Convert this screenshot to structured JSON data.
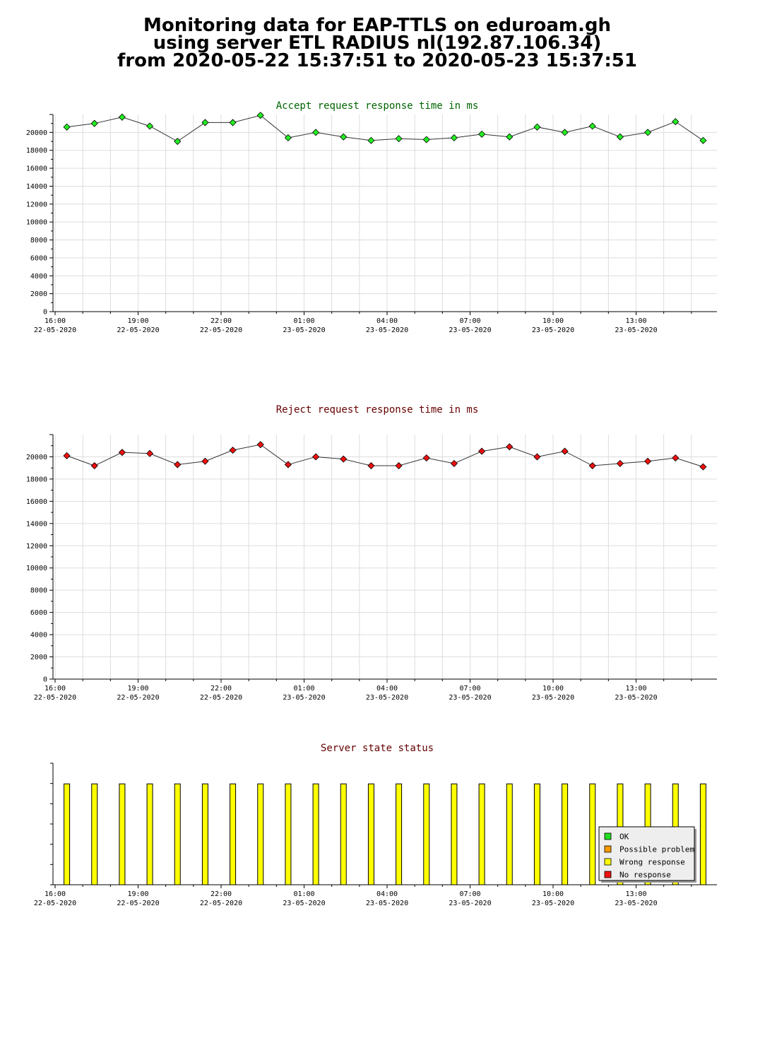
{
  "page": {
    "title_lines": [
      "Monitoring data for EAP-TTLS on eduroam.gh",
      "using server ETL RADIUS nl(192.87.106.34)",
      "from 2020-05-22 15:37:51 to 2020-05-23 15:37:51"
    ]
  },
  "chart_data": [
    {
      "type": "line",
      "title": "Accept request response time in ms",
      "title_color": "#006400",
      "marker_color": "#22ee22",
      "ylim": [
        0,
        22000
      ],
      "yticks": [
        0,
        2000,
        4000,
        6000,
        8000,
        10000,
        12000,
        14000,
        16000,
        18000,
        20000
      ],
      "xticks": [
        {
          "time": "16:00",
          "date": "22-05-2020"
        },
        {
          "time": "19:00",
          "date": "22-05-2020"
        },
        {
          "time": "22:00",
          "date": "22-05-2020"
        },
        {
          "time": "01:00",
          "date": "23-05-2020"
        },
        {
          "time": "04:00",
          "date": "23-05-2020"
        },
        {
          "time": "07:00",
          "date": "23-05-2020"
        },
        {
          "time": "10:00",
          "date": "23-05-2020"
        },
        {
          "time": "13:00",
          "date": "23-05-2020"
        }
      ],
      "grid": true,
      "values": [
        20600,
        21000,
        21700,
        20700,
        19000,
        21100,
        21100,
        21900,
        19400,
        20000,
        19500,
        19100,
        19300,
        19200,
        19400,
        19800,
        19500,
        20600,
        20000,
        20700,
        19500,
        20000,
        21200,
        19100
      ]
    },
    {
      "type": "line",
      "title": "Reject request response time in ms",
      "title_color": "#660000",
      "marker_color": "#ee1111",
      "ylim": [
        0,
        22000
      ],
      "yticks": [
        0,
        2000,
        4000,
        6000,
        8000,
        10000,
        12000,
        14000,
        16000,
        18000,
        20000
      ],
      "xticks": [
        {
          "time": "16:00",
          "date": "22-05-2020"
        },
        {
          "time": "19:00",
          "date": "22-05-2020"
        },
        {
          "time": "22:00",
          "date": "22-05-2020"
        },
        {
          "time": "01:00",
          "date": "23-05-2020"
        },
        {
          "time": "04:00",
          "date": "23-05-2020"
        },
        {
          "time": "07:00",
          "date": "23-05-2020"
        },
        {
          "time": "10:00",
          "date": "23-05-2020"
        },
        {
          "time": "13:00",
          "date": "23-05-2020"
        }
      ],
      "grid": true,
      "values": [
        20100,
        19200,
        20400,
        20300,
        19300,
        19600,
        20600,
        21100,
        19300,
        20000,
        19800,
        19200,
        19200,
        19900,
        19400,
        20500,
        20900,
        20000,
        20500,
        19200,
        19400,
        19600,
        19900,
        19100
      ]
    },
    {
      "type": "bar",
      "title": "Server state status",
      "title_color": "#660000",
      "bar_color": "#ffff00",
      "bar_level": 0.83,
      "bar_count": 24,
      "xticks": [
        {
          "time": "16:00",
          "date": "22-05-2020"
        },
        {
          "time": "19:00",
          "date": "22-05-2020"
        },
        {
          "time": "22:00",
          "date": "22-05-2020"
        },
        {
          "time": "01:00",
          "date": "23-05-2020"
        },
        {
          "time": "04:00",
          "date": "23-05-2020"
        },
        {
          "time": "07:00",
          "date": "23-05-2020"
        },
        {
          "time": "10:00",
          "date": "23-05-2020"
        },
        {
          "time": "13:00",
          "date": "23-05-2020"
        }
      ],
      "legend": [
        {
          "label": "OK",
          "color": "#22dd22"
        },
        {
          "label": "Possible problem",
          "color": "#ff9900"
        },
        {
          "label": "Wrong response",
          "color": "#ffff00"
        },
        {
          "label": "No response",
          "color": "#ee1111"
        }
      ],
      "legend_position": "right"
    }
  ]
}
